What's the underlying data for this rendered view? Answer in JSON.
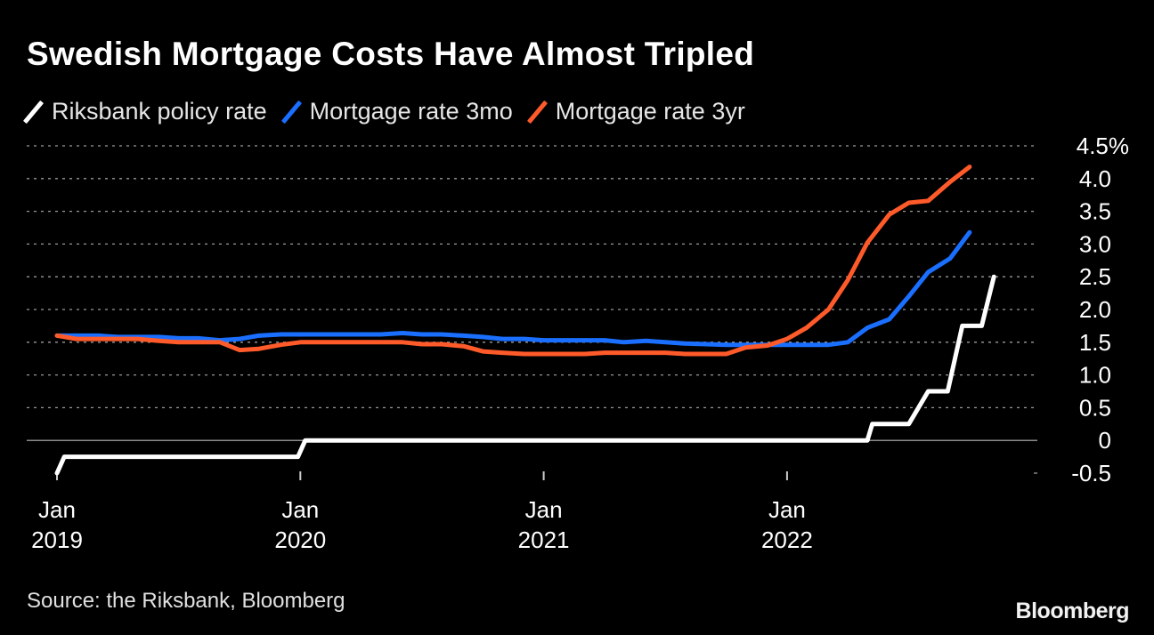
{
  "title": "Swedish Mortgage Costs Have Almost Tripled",
  "source": "Source: the Riksbank, Bloomberg",
  "brand": "Bloomberg",
  "colors": {
    "policy": "#ffffff",
    "mortgage3mo": "#1a6fff",
    "mortgage3yr": "#ff5a2a",
    "grid": "#9a9a9a",
    "background": "#000000"
  },
  "chart_data": {
    "type": "line",
    "title": "Swedish Mortgage Costs Have Almost Tripled",
    "xlabel": "",
    "ylabel": "",
    "ylim": [
      -0.5,
      4.5
    ],
    "yticks": [
      {
        "value": 4.5,
        "label": "4.5%"
      },
      {
        "value": 4.0,
        "label": "4.0"
      },
      {
        "value": 3.5,
        "label": "3.5"
      },
      {
        "value": 3.0,
        "label": "3.0"
      },
      {
        "value": 2.5,
        "label": "2.5"
      },
      {
        "value": 2.0,
        "label": "2.0"
      },
      {
        "value": 1.5,
        "label": "1.5"
      },
      {
        "value": 1.0,
        "label": "1.0"
      },
      {
        "value": 0.5,
        "label": "0.5"
      },
      {
        "value": 0,
        "label": "0"
      },
      {
        "value": -0.5,
        "label": "-0.5"
      }
    ],
    "xlim": [
      2019.0,
      2022.9
    ],
    "xticks": [
      {
        "value": 2019,
        "month": "Jan",
        "year": "2019"
      },
      {
        "value": 2020,
        "month": "Jan",
        "year": "2020"
      },
      {
        "value": 2021,
        "month": "Jan",
        "year": "2021"
      },
      {
        "value": 2022,
        "month": "Jan",
        "year": "2022"
      }
    ],
    "legend_position": "top-left",
    "series": [
      {
        "key": "policy",
        "name": "Riksbank policy rate",
        "points": [
          [
            2019.0,
            -0.5
          ],
          [
            2019.03,
            -0.25
          ],
          [
            2019.99,
            -0.25
          ],
          [
            2020.02,
            0.0
          ],
          [
            2022.33,
            0.0
          ],
          [
            2022.35,
            0.25
          ],
          [
            2022.5,
            0.25
          ],
          [
            2022.58,
            0.75
          ],
          [
            2022.66,
            0.75
          ],
          [
            2022.72,
            1.75
          ],
          [
            2022.8,
            1.75
          ],
          [
            2022.85,
            2.5
          ]
        ]
      },
      {
        "key": "mortgage3mo",
        "name": "Mortgage rate 3mo",
        "points": [
          [
            2019.0,
            1.6
          ],
          [
            2019.08,
            1.6
          ],
          [
            2019.17,
            1.6
          ],
          [
            2019.25,
            1.58
          ],
          [
            2019.33,
            1.58
          ],
          [
            2019.42,
            1.58
          ],
          [
            2019.5,
            1.56
          ],
          [
            2019.58,
            1.56
          ],
          [
            2019.67,
            1.53
          ],
          [
            2019.75,
            1.55
          ],
          [
            2019.83,
            1.6
          ],
          [
            2019.92,
            1.62
          ],
          [
            2020.0,
            1.62
          ],
          [
            2020.08,
            1.62
          ],
          [
            2020.17,
            1.62
          ],
          [
            2020.25,
            1.62
          ],
          [
            2020.33,
            1.62
          ],
          [
            2020.42,
            1.64
          ],
          [
            2020.5,
            1.62
          ],
          [
            2020.58,
            1.62
          ],
          [
            2020.67,
            1.6
          ],
          [
            2020.75,
            1.58
          ],
          [
            2020.83,
            1.55
          ],
          [
            2020.92,
            1.55
          ],
          [
            2021.0,
            1.53
          ],
          [
            2021.08,
            1.53
          ],
          [
            2021.17,
            1.53
          ],
          [
            2021.25,
            1.53
          ],
          [
            2021.33,
            1.5
          ],
          [
            2021.42,
            1.52
          ],
          [
            2021.5,
            1.5
          ],
          [
            2021.58,
            1.48
          ],
          [
            2021.67,
            1.47
          ],
          [
            2021.75,
            1.46
          ],
          [
            2021.83,
            1.46
          ],
          [
            2021.92,
            1.46
          ],
          [
            2022.0,
            1.46
          ],
          [
            2022.08,
            1.46
          ],
          [
            2022.17,
            1.46
          ],
          [
            2022.25,
            1.5
          ],
          [
            2022.33,
            1.72
          ],
          [
            2022.42,
            1.85
          ],
          [
            2022.5,
            2.2
          ],
          [
            2022.58,
            2.57
          ],
          [
            2022.67,
            2.78
          ],
          [
            2022.75,
            3.18
          ]
        ]
      },
      {
        "key": "mortgage3yr",
        "name": "Mortgage rate 3yr",
        "points": [
          [
            2019.0,
            1.6
          ],
          [
            2019.08,
            1.55
          ],
          [
            2019.17,
            1.55
          ],
          [
            2019.25,
            1.55
          ],
          [
            2019.33,
            1.55
          ],
          [
            2019.42,
            1.52
          ],
          [
            2019.5,
            1.5
          ],
          [
            2019.58,
            1.5
          ],
          [
            2019.67,
            1.5
          ],
          [
            2019.75,
            1.38
          ],
          [
            2019.83,
            1.4
          ],
          [
            2019.92,
            1.46
          ],
          [
            2020.0,
            1.5
          ],
          [
            2020.08,
            1.5
          ],
          [
            2020.17,
            1.5
          ],
          [
            2020.25,
            1.5
          ],
          [
            2020.33,
            1.5
          ],
          [
            2020.42,
            1.5
          ],
          [
            2020.5,
            1.47
          ],
          [
            2020.58,
            1.47
          ],
          [
            2020.67,
            1.44
          ],
          [
            2020.75,
            1.36
          ],
          [
            2020.83,
            1.34
          ],
          [
            2020.92,
            1.32
          ],
          [
            2021.0,
            1.32
          ],
          [
            2021.08,
            1.32
          ],
          [
            2021.17,
            1.32
          ],
          [
            2021.25,
            1.34
          ],
          [
            2021.33,
            1.34
          ],
          [
            2021.42,
            1.34
          ],
          [
            2021.5,
            1.34
          ],
          [
            2021.58,
            1.32
          ],
          [
            2021.67,
            1.32
          ],
          [
            2021.75,
            1.32
          ],
          [
            2021.83,
            1.42
          ],
          [
            2021.92,
            1.45
          ],
          [
            2022.0,
            1.55
          ],
          [
            2022.08,
            1.72
          ],
          [
            2022.17,
            2.0
          ],
          [
            2022.25,
            2.45
          ],
          [
            2022.33,
            3.02
          ],
          [
            2022.42,
            3.45
          ],
          [
            2022.5,
            3.63
          ],
          [
            2022.58,
            3.66
          ],
          [
            2022.67,
            3.95
          ],
          [
            2022.75,
            4.18
          ]
        ]
      }
    ]
  }
}
